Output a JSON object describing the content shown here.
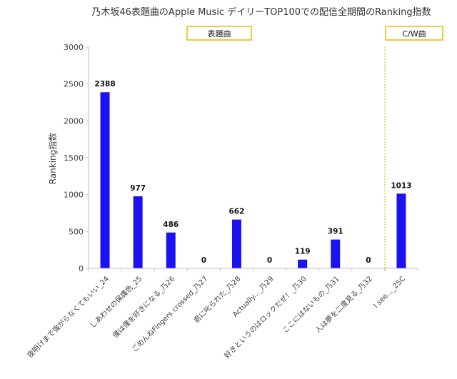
{
  "chart_data": {
    "type": "bar",
    "title": "乃木坂46表題曲のApple Music デイリーTOP100での配信全期間のRanking指数",
    "xlabel": "",
    "ylabel": "Ranking指数",
    "ylim": [
      0,
      3000
    ],
    "yticks": [
      0,
      500,
      1000,
      1500,
      2000,
      2500,
      3000
    ],
    "grid": false,
    "categories": [
      "夜明けまで強がらなくてもいい_24",
      "しあわせの保護色_25",
      "僕は僕を好きになる_乃26",
      "ごめんねFingers crossed_乃27",
      "君に叱られた_乃28",
      "Actually..._乃29",
      "好きというのはロックだぜ！_乃30",
      "ここにはないもの_乃31",
      "人は夢を二度見る_乃32",
      "I see..._25C"
    ],
    "values": [
      2388,
      977,
      486,
      0,
      662,
      0,
      119,
      391,
      0,
      1013
    ],
    "bar_color": "#1a12f0",
    "annotations": {
      "title_songs_box": "表題曲",
      "cw_box": "C/W曲",
      "box_border_color": "#e8b800",
      "divider_color": "#e8b800"
    }
  }
}
